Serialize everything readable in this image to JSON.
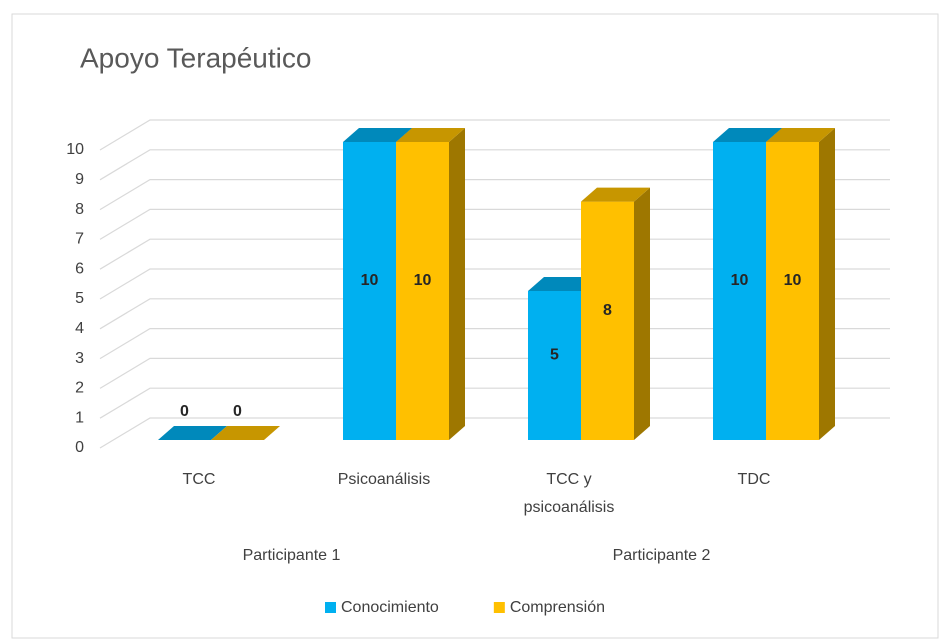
{
  "chart_data": {
    "type": "bar3d",
    "title": "Apoyo Terapéutico",
    "groups": [
      {
        "name": "Participante 1",
        "categories": [
          "TCC",
          "Psicoanálisis"
        ]
      },
      {
        "name": "Participante 2",
        "categories": [
          "TCC y psicoanálisis",
          "TDC"
        ]
      }
    ],
    "series": [
      {
        "name": "Conocimiento",
        "color": "#00b0f0",
        "values": [
          0,
          10,
          5,
          10
        ]
      },
      {
        "name": "Comprensión",
        "color": "#ffc000",
        "values": [
          0,
          10,
          8,
          10
        ]
      }
    ],
    "ylim": [
      0,
      10
    ],
    "yticks": [
      0,
      1,
      2,
      3,
      4,
      5,
      6,
      7,
      8,
      9,
      10
    ],
    "grid": true,
    "legend": "bottom"
  }
}
